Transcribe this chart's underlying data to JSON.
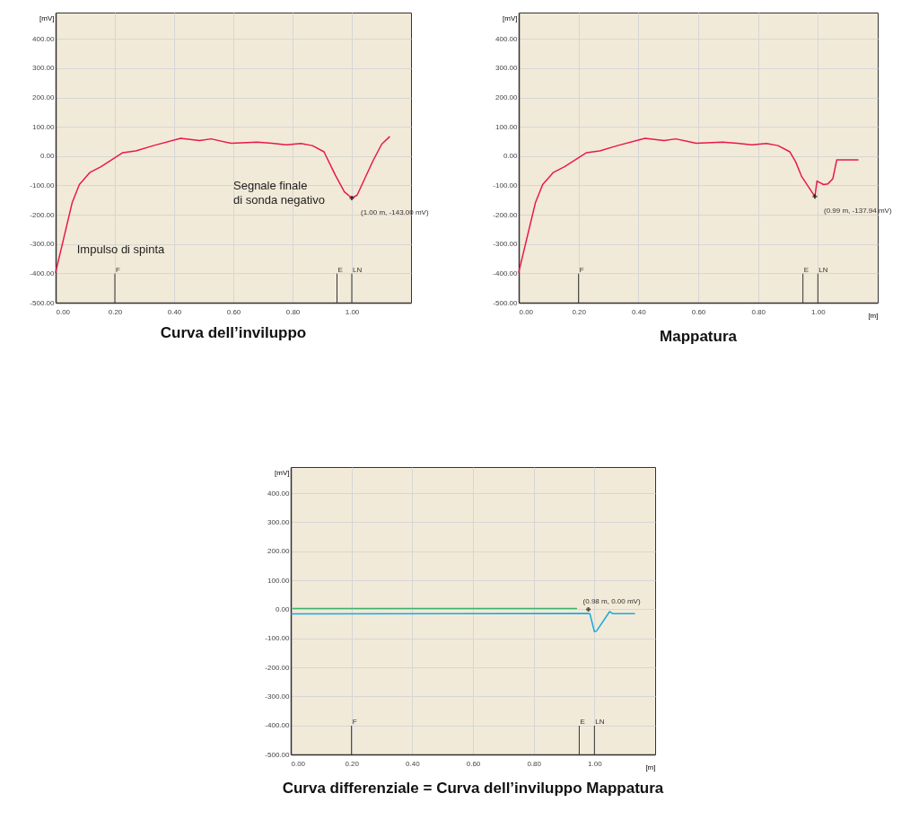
{
  "chart_data": [
    {
      "type": "line",
      "title": "Curva dell’inviluppo",
      "ylabel": "[mV]",
      "xlim": [
        0,
        1.2
      ],
      "ylim": [
        -500,
        490
      ],
      "xticks": [
        {
          "value": 0,
          "label": "0.00"
        },
        {
          "value": 0.2,
          "label": "0.20"
        },
        {
          "value": 0.4,
          "label": "0.40"
        },
        {
          "value": 0.6,
          "label": "0.60"
        },
        {
          "value": 0.8,
          "label": "0.80"
        },
        {
          "value": 1,
          "label": "1.00"
        }
      ],
      "yticks": [
        {
          "value": -500,
          "label": "-500.00"
        },
        {
          "value": -400,
          "label": "-400.00"
        },
        {
          "value": -300,
          "label": "-300.00"
        },
        {
          "value": -200,
          "label": "-200.00"
        },
        {
          "value": -100,
          "label": "-100.00"
        },
        {
          "value": 0,
          "label": "0.00"
        },
        {
          "value": 100,
          "label": "100.00"
        },
        {
          "value": 200,
          "label": "200.00"
        },
        {
          "value": 300,
          "label": "300.00"
        },
        {
          "value": 400,
          "label": "400.00"
        }
      ],
      "grid": true,
      "series": [
        {
          "color": "#e8194a",
          "x": [
            0,
            0.056,
            0.08,
            0.115,
            0.153,
            0.193,
            0.227,
            0.271,
            0.33,
            0.422,
            0.486,
            0.525,
            0.593,
            0.681,
            0.73,
            0.779,
            0.828,
            0.867,
            0.906,
            0.945,
            0.975,
            1.0,
            1.018,
            1.072,
            1.101,
            1.127
          ],
          "values": [
            -396,
            -158,
            -97,
            -56,
            -36,
            -10,
            12,
            18,
            36,
            61,
            53,
            59,
            44,
            48,
            44,
            39,
            43,
            36,
            15,
            -66,
            -122,
            -143,
            -133,
            -15,
            41,
            66
          ]
        }
      ],
      "ref_lines": [
        {
          "axis": "x",
          "value": 0.2,
          "label": "F"
        },
        {
          "axis": "x",
          "value": 0.95,
          "label": "E"
        },
        {
          "axis": "x",
          "value": 1.0,
          "label": "LN"
        }
      ],
      "annotations": [
        "Impulso di spinta",
        "Segnale finale\ndi sonda negativo",
        {
          "text": "(1.00 m, -143.00 mV)",
          "x": 1.0,
          "y": -143
        }
      ]
    },
    {
      "type": "line",
      "title": "Mappatura",
      "ylabel": "[mV]",
      "xlabel": "[m]",
      "xlim": [
        0,
        1.2
      ],
      "ylim": [
        -500,
        490
      ],
      "xticks": [
        {
          "value": 0,
          "label": "0.00"
        },
        {
          "value": 0.2,
          "label": "0.20"
        },
        {
          "value": 0.4,
          "label": "0.40"
        },
        {
          "value": 0.6,
          "label": "0.60"
        },
        {
          "value": 0.8,
          "label": "0.80"
        },
        {
          "value": 1,
          "label": "1.00"
        }
      ],
      "yticks": [
        {
          "value": -500,
          "label": "-500.00"
        },
        {
          "value": -400,
          "label": "-400.00"
        },
        {
          "value": -300,
          "label": "-300.00"
        },
        {
          "value": -200,
          "label": "-200.00"
        },
        {
          "value": -100,
          "label": "-100.00"
        },
        {
          "value": 0,
          "label": "0.00"
        },
        {
          "value": 100,
          "label": "100.00"
        },
        {
          "value": 200,
          "label": "200.00"
        },
        {
          "value": 300,
          "label": "300.00"
        },
        {
          "value": 400,
          "label": "400.00"
        }
      ],
      "grid": true,
      "series": [
        {
          "color": "#e8194a",
          "x": [
            0,
            0.056,
            0.08,
            0.115,
            0.153,
            0.193,
            0.227,
            0.271,
            0.33,
            0.422,
            0.486,
            0.525,
            0.593,
            0.681,
            0.73,
            0.779,
            0.828,
            0.867,
            0.906,
            0.926,
            0.945,
            0.99,
            0.997,
            1.019,
            1.033,
            1.05,
            1.063,
            1.134
          ],
          "values": [
            -396,
            -158,
            -97,
            -56,
            -36,
            -10,
            12,
            18,
            36,
            61,
            53,
            59,
            44,
            48,
            44,
            39,
            43,
            36,
            15,
            -20,
            -68,
            -137.94,
            -85,
            -97,
            -95,
            -77,
            -13,
            -13
          ]
        }
      ],
      "ref_lines": [
        {
          "axis": "x",
          "value": 0.2,
          "label": "F"
        },
        {
          "axis": "x",
          "value": 0.95,
          "label": "E"
        },
        {
          "axis": "x",
          "value": 1.0,
          "label": "LN"
        }
      ],
      "annotations": [
        {
          "text": "(0.99 m, -137.94 mV)",
          "x": 0.99,
          "y": -137.94
        }
      ]
    },
    {
      "type": "line",
      "title": "Curva differenziale = Curva dell’inviluppo  Mappatura",
      "ylabel": "[mV]",
      "xlabel": "[m]",
      "xlim": [
        0,
        1.2
      ],
      "ylim": [
        -500,
        490
      ],
      "xticks": [
        {
          "value": 0,
          "label": "0.00"
        },
        {
          "value": 0.2,
          "label": "0.20"
        },
        {
          "value": 0.4,
          "label": "0.40"
        },
        {
          "value": 0.6,
          "label": "0.60"
        },
        {
          "value": 0.8,
          "label": "0.80"
        },
        {
          "value": 1,
          "label": "1.00"
        }
      ],
      "yticks": [
        {
          "value": -500,
          "label": "-500.00"
        },
        {
          "value": -400,
          "label": "-400.00"
        },
        {
          "value": -300,
          "label": "-300.00"
        },
        {
          "value": -200,
          "label": "-200.00"
        },
        {
          "value": -100,
          "label": "-100.00"
        },
        {
          "value": 0,
          "label": "0.00"
        },
        {
          "value": 100,
          "label": "100.00"
        },
        {
          "value": 200,
          "label": "200.00"
        },
        {
          "value": 300,
          "label": "300.00"
        },
        {
          "value": 400,
          "label": "400.00"
        }
      ],
      "grid": true,
      "series": [
        {
          "color": "#3db36b",
          "x": [
            0.007,
            0.941
          ],
          "values": [
            3,
            3
          ]
        },
        {
          "color": "#17a9e1",
          "x": [
            0.003,
            0.977,
            0.985,
            1.0,
            1.007,
            1.05,
            1.06,
            1.132
          ],
          "values": [
            -16,
            -14,
            -15,
            -77,
            -75,
            -8,
            -15,
            -15
          ]
        }
      ],
      "ref_lines": [
        {
          "axis": "x",
          "value": 0.2,
          "label": "F"
        },
        {
          "axis": "x",
          "value": 0.95,
          "label": "E"
        },
        {
          "axis": "x",
          "value": 1.0,
          "label": "LN"
        }
      ],
      "annotations": [
        {
          "text": "(0.98 m, 0.00 mV)",
          "x": 0.98,
          "y": 0
        }
      ]
    }
  ]
}
